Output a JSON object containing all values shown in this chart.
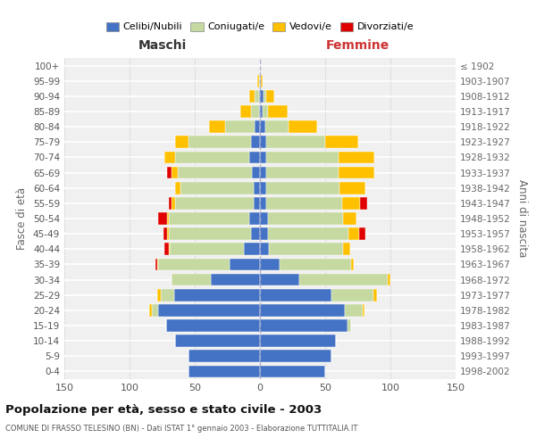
{
  "age_groups": [
    "0-4",
    "5-9",
    "10-14",
    "15-19",
    "20-24",
    "25-29",
    "30-34",
    "35-39",
    "40-44",
    "45-49",
    "50-54",
    "55-59",
    "60-64",
    "65-69",
    "70-74",
    "75-79",
    "80-84",
    "85-89",
    "90-94",
    "95-99",
    "100+"
  ],
  "birth_years": [
    "1998-2002",
    "1993-1997",
    "1988-1992",
    "1983-1987",
    "1978-1982",
    "1973-1977",
    "1968-1972",
    "1963-1967",
    "1958-1962",
    "1953-1957",
    "1948-1952",
    "1943-1947",
    "1938-1942",
    "1933-1937",
    "1928-1932",
    "1923-1927",
    "1918-1922",
    "1913-1917",
    "1908-1912",
    "1903-1907",
    "≤ 1902"
  ],
  "maschi": {
    "celibi": [
      55,
      55,
      65,
      72,
      78,
      66,
      38,
      23,
      12,
      7,
      8,
      5,
      5,
      6,
      8,
      7,
      4,
      1,
      1,
      0,
      0
    ],
    "coniugati": [
      0,
      0,
      0,
      0,
      5,
      10,
      30,
      55,
      57,
      63,
      62,
      60,
      56,
      57,
      57,
      48,
      23,
      6,
      3,
      1,
      0
    ],
    "vedovi": [
      0,
      0,
      0,
      0,
      2,
      3,
      0,
      1,
      1,
      1,
      1,
      3,
      4,
      5,
      8,
      10,
      12,
      8,
      4,
      1,
      0
    ],
    "divorziati": [
      0,
      0,
      0,
      0,
      0,
      0,
      0,
      1,
      3,
      3,
      7,
      2,
      0,
      3,
      0,
      0,
      0,
      0,
      0,
      0,
      0
    ]
  },
  "femmine": {
    "nubili": [
      50,
      55,
      58,
      67,
      65,
      55,
      30,
      15,
      7,
      6,
      6,
      5,
      5,
      5,
      5,
      5,
      4,
      2,
      3,
      1,
      0
    ],
    "coniugate": [
      0,
      0,
      0,
      3,
      14,
      32,
      68,
      55,
      57,
      62,
      58,
      58,
      56,
      55,
      55,
      45,
      18,
      4,
      2,
      0,
      0
    ],
    "vedove": [
      0,
      0,
      0,
      0,
      1,
      3,
      2,
      2,
      5,
      8,
      10,
      14,
      20,
      28,
      28,
      25,
      22,
      15,
      6,
      1,
      0
    ],
    "divorziate": [
      0,
      0,
      0,
      0,
      0,
      0,
      0,
      0,
      0,
      5,
      0,
      5,
      0,
      0,
      0,
      0,
      0,
      0,
      0,
      0,
      0
    ]
  },
  "colors": {
    "celibi": "#4472c4",
    "coniugati": "#c5d9a0",
    "vedovi": "#ffc000",
    "divorziati": "#e00000"
  },
  "xlim": 150,
  "title": "Popolazione per età, sesso e stato civile - 2003",
  "subtitle": "COMUNE DI FRASSO TELESINO (BN) - Dati ISTAT 1° gennaio 2003 - Elaborazione TUTTITALIA.IT",
  "xlabel_left": "Maschi",
  "xlabel_right": "Femmine",
  "ylabel_left": "Fasce di età",
  "ylabel_right": "Anni di nascita",
  "legend_labels": [
    "Celibi/Nubili",
    "Coniugati/e",
    "Vedovi/e",
    "Divorziati/e"
  ]
}
